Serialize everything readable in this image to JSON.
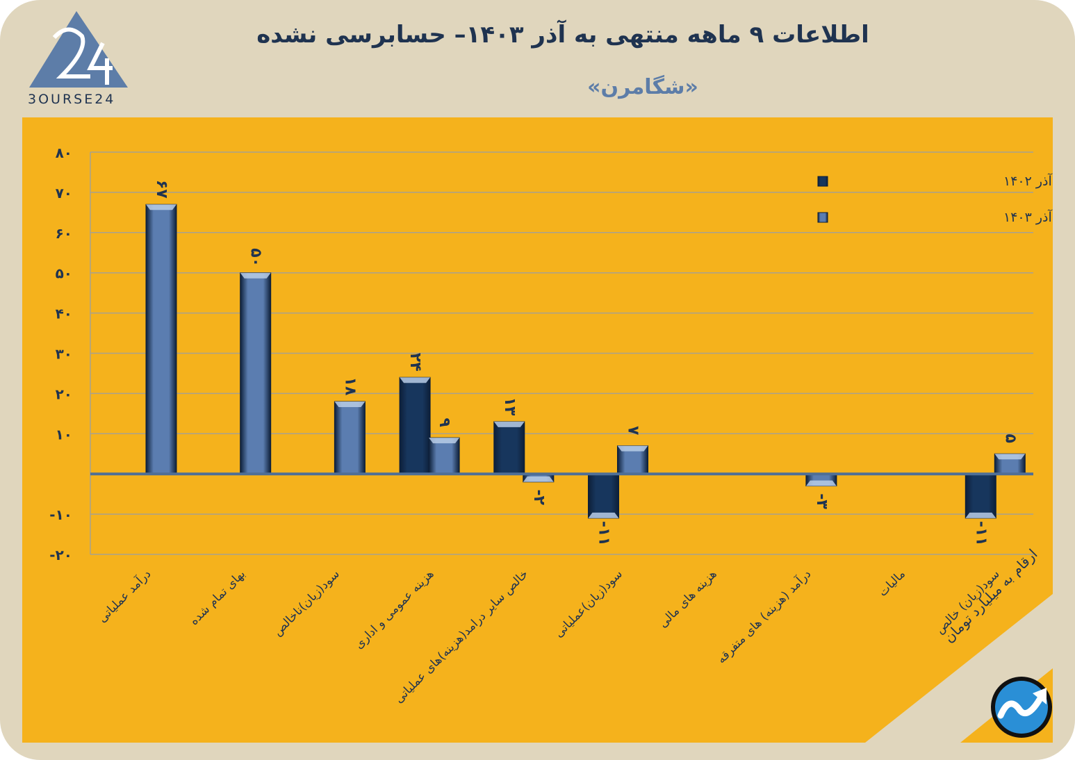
{
  "header": {
    "title": "اطلاعات ۹ ماهه منتهی به آذر  ۱۴۰۳– حسابرسی نشده",
    "subtitle": "«شگامرن»",
    "logo_text": "3OURSE24"
  },
  "footnote": "ارقام به میلیارد تومان",
  "colors": {
    "background": "#e0d6bd",
    "panel": "#f5b21c",
    "series_1402": "#17365d",
    "series_1403": "#5b7db0",
    "zero_line": "#4f6f96",
    "grid": "#a7a18f",
    "text": "#1f3350"
  },
  "icons": [
    "bourse24-logo-icon",
    "trend-arrow-icon"
  ],
  "chart_data": {
    "type": "bar",
    "title": "",
    "xlabel": "",
    "ylabel": "",
    "ylim": [
      -20,
      80
    ],
    "yticks": [
      -20,
      -10,
      0,
      10,
      20,
      30,
      40,
      50,
      60,
      70,
      80
    ],
    "ytick_labels": [
      "-۲۰",
      "-۱۰",
      "",
      "۱۰",
      "۲۰",
      "۳۰",
      "۴۰",
      "۵۰",
      "۶۰",
      "۷۰",
      "۸۰"
    ],
    "grid": true,
    "legend_position": "top-right",
    "categories": [
      "درآمد عملیاتی",
      "بهای تمام شده",
      "سود(زیان)ناخالص",
      "هزینه عمومی و اداری",
      "خالص سایر درامد(هزینه)های عملیاتی",
      "سود(زیان)عملیاتی",
      "هزینه های مالی",
      "درآمد (هزینه) های متفرقه",
      "مالیات",
      "سود(زیان) خالص"
    ],
    "series": [
      {
        "name": "عملکرد منتهی به آذر ۱۴۰۲",
        "color": "#17365d",
        "values": [
          null,
          null,
          null,
          24,
          13,
          -11,
          null,
          null,
          null,
          -11
        ],
        "labels": [
          "",
          "",
          "",
          "۲۴",
          "۱۳",
          "-۱۱",
          "",
          "",
          "",
          "-۱۱"
        ]
      },
      {
        "name": "عملکرد منتهی به آذر ۱۴۰۳",
        "color": "#5b7db0",
        "values": [
          67,
          50,
          18,
          9,
          -2,
          7,
          null,
          -3,
          null,
          5
        ],
        "labels": [
          "۶۷",
          "۵۰",
          "۱۸",
          "۹",
          "-۲",
          "۷",
          "",
          "-۳",
          "",
          "۵"
        ]
      }
    ]
  }
}
